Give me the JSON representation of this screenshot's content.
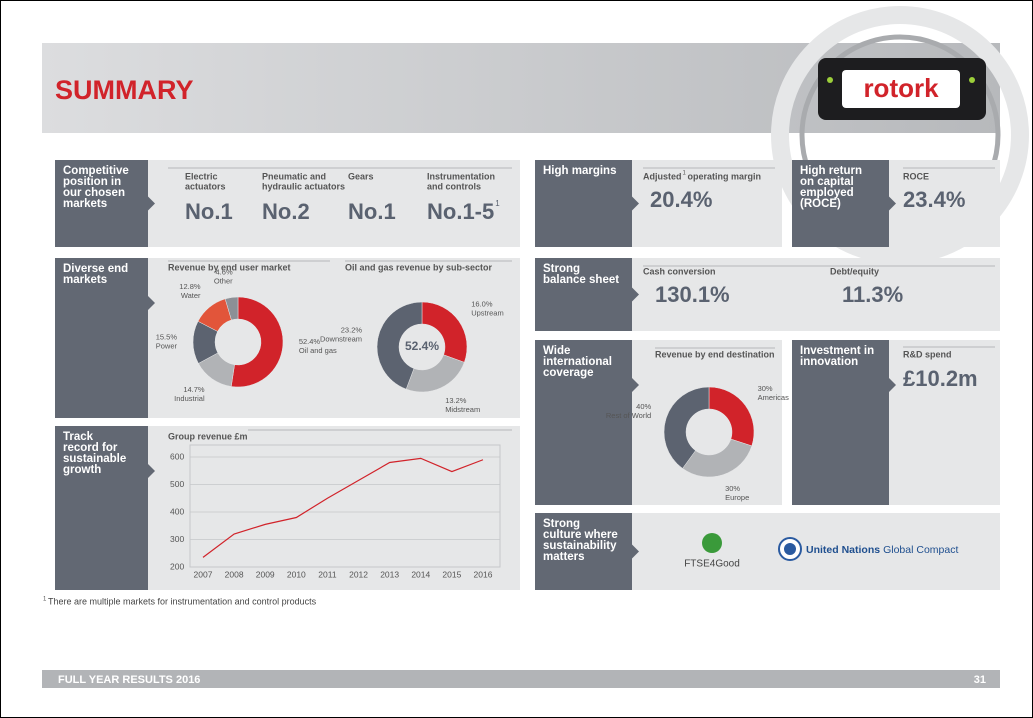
{
  "header": {
    "title": "SUMMARY",
    "logo": "rotork"
  },
  "competitive": {
    "title": [
      "Competitive",
      "position in",
      "our chosen",
      "markets"
    ],
    "items": [
      {
        "label": [
          "Electric",
          "actuators"
        ],
        "rank": "No.1"
      },
      {
        "label": [
          "Pneumatic and",
          "hydraulic actuators"
        ],
        "rank": "No.2"
      },
      {
        "label": [
          "Gears"
        ],
        "rank": "No.1"
      },
      {
        "label": [
          "Instrumentation",
          "and controls"
        ],
        "rank": "No.1-5",
        "rank_sup": "1"
      }
    ]
  },
  "diverse": {
    "title": [
      "Diverse end",
      "markets"
    ]
  },
  "track": {
    "title": [
      "Track",
      "record for",
      "sustainable",
      "growth"
    ]
  },
  "margins": {
    "title": [
      "High margins"
    ],
    "label": "Adjusted",
    "label_sup": "1",
    "label_rest": "operating margin",
    "value": "20.4%"
  },
  "roce": {
    "title": [
      "High return",
      "on capital",
      "employed",
      "(ROCE)"
    ],
    "label": "ROCE",
    "value": "23.4%"
  },
  "balance": {
    "title": [
      "Strong",
      "balance sheet"
    ],
    "items": [
      {
        "label": "Cash conversion",
        "value": "130.1%"
      },
      {
        "label": "Debt/equity",
        "value": "11.3%"
      }
    ]
  },
  "coverage": {
    "title": [
      "Wide",
      "international",
      "coverage"
    ]
  },
  "innovation": {
    "title": [
      "Investment in",
      "innovation"
    ],
    "label": "R&D spend",
    "value": "£10.2m"
  },
  "culture": {
    "title": [
      "Strong",
      "culture where",
      "sustainability",
      "matters"
    ],
    "ftse": "FTSE4Good",
    "un_bold": "United Nations",
    "un_rest": "Global Compact"
  },
  "footnote": {
    "mark": "1",
    "text": "There are multiple markets for instrumentation and control products"
  },
  "footer": {
    "title": "FULL YEAR RESULTS 2016",
    "page": "31"
  },
  "chart_data": [
    {
      "type": "donut",
      "title": "Revenue by end user market",
      "categories": [
        "Oil and gas",
        "Industrial",
        "Power",
        "Water",
        "Other"
      ],
      "values": [
        52.4,
        14.7,
        15.5,
        12.8,
        4.6
      ],
      "value_labels": [
        "52.4%",
        "14.7%",
        "15.5%",
        "12.8%",
        "4.6%"
      ],
      "colors": [
        "#d1232a",
        "#b1b3b6",
        "#5c6370",
        "#e2553a",
        "#8c9096"
      ]
    },
    {
      "type": "donut",
      "title": "Oil and gas revenue by sub-sector",
      "center_label": "52.4%",
      "categories": [
        "Upstream",
        "Midstream",
        "Downstream"
      ],
      "values": [
        16.0,
        13.2,
        23.2
      ],
      "value_labels": [
        "16.0%",
        "13.2%",
        "23.2%"
      ],
      "colors": [
        "#d1232a",
        "#b1b3b6",
        "#5c6370"
      ]
    },
    {
      "type": "line",
      "title": "Group revenue £m",
      "categories": [
        "2007",
        "2008",
        "2009",
        "2010",
        "2011",
        "2012",
        "2013",
        "2014",
        "2015",
        "2016"
      ],
      "values": [
        235,
        320,
        355,
        380,
        450,
        515,
        580,
        595,
        547,
        590
      ],
      "color": "#d1232a",
      "ylim": [
        200,
        600
      ],
      "yticks": [
        200,
        300,
        400,
        500,
        600
      ],
      "grid": true
    },
    {
      "type": "donut",
      "title": "Revenue by end destination",
      "categories": [
        "Americas",
        "Europe",
        "Rest of World"
      ],
      "values": [
        30,
        30,
        40
      ],
      "value_labels": [
        "30%",
        "30%",
        "40%"
      ],
      "colors": [
        "#d1232a",
        "#b1b3b6",
        "#5c6370"
      ]
    }
  ]
}
